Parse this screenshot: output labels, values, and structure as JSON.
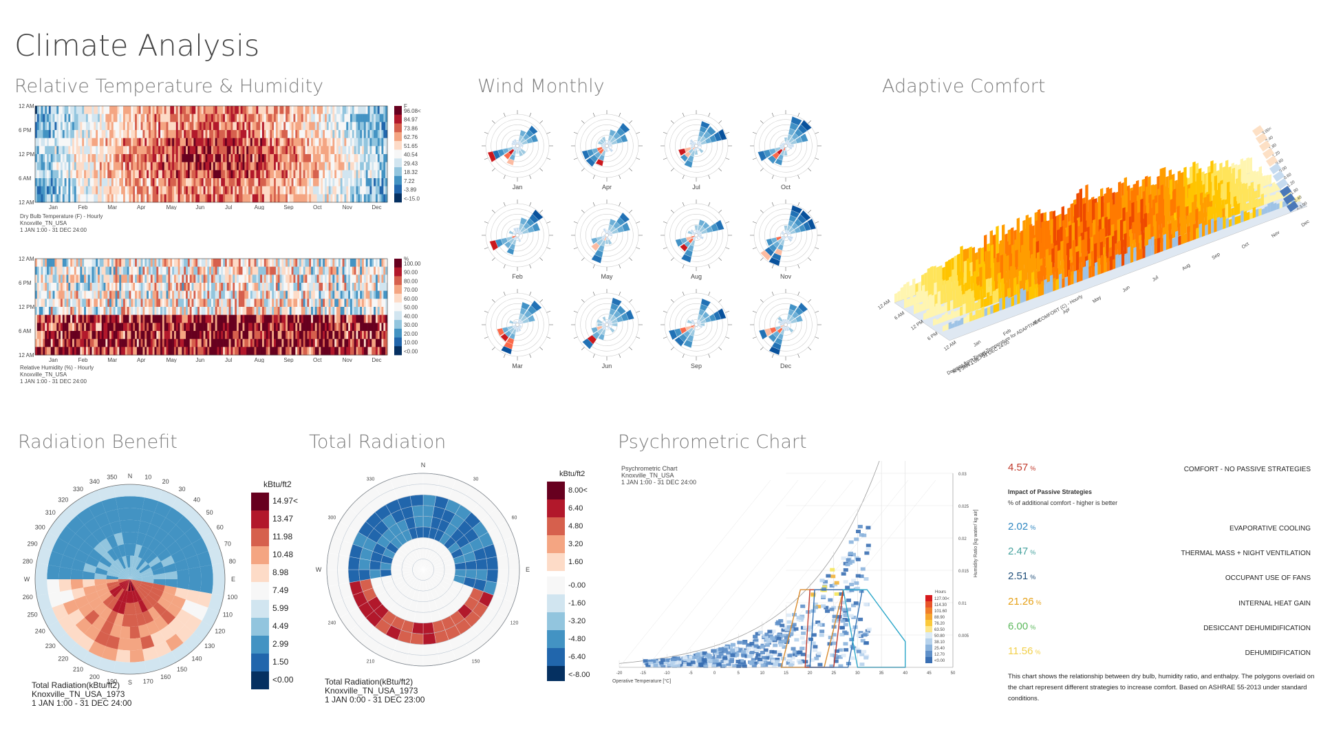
{
  "page": {
    "title": "Climate Analysis",
    "sections": {
      "temp_humidity": "Relative Temperature & Humidity",
      "wind": "Wind Monthly",
      "adaptive": "Adaptive Comfort",
      "radiation_benefit": "Radiation Benefit",
      "total_radiation": "Total Radiation",
      "psychrometric": "Psychrometric Chart"
    }
  },
  "colors": {
    "hot": "#67001f",
    "warm": "#d6604d",
    "neutral": "#f7f7f7",
    "cool": "#4393c3",
    "cold": "#053061",
    "comfort_orange": "#f08a1c",
    "comfort_yellow": "#f5d23a"
  },
  "chart_data": [
    {
      "type": "heatmap",
      "id": "dry_bulb",
      "y_ticks": [
        "12 AM",
        "6 PM",
        "12 PM",
        "6 AM",
        "12 AM"
      ],
      "x_ticks": [
        "Jan",
        "Feb",
        "Mar",
        "Apr",
        "May",
        "Jun",
        "Jul",
        "Aug",
        "Sep",
        "Oct",
        "Nov",
        "Dec"
      ],
      "legend_unit": "F",
      "legend": [
        "96.08<",
        "84.97",
        "73.86",
        "62.76",
        "51.65",
        "40.54",
        "29.43",
        "18.32",
        "7.22",
        "-3.89",
        "<-15.0"
      ],
      "caption": [
        "Dry Bulb Temperature (F) - Hourly",
        "Knoxville_TN_USA",
        "1 JAN 1:00 - 31 DEC 24:00"
      ]
    },
    {
      "type": "heatmap",
      "id": "relative_humidity",
      "y_ticks": [
        "12 AM",
        "6 PM",
        "12 PM",
        "6 AM",
        "12 AM"
      ],
      "x_ticks": [
        "Jan",
        "Feb",
        "Mar",
        "Apr",
        "May",
        "Jun",
        "Jul",
        "Aug",
        "Sep",
        "Oct",
        "Nov",
        "Dec"
      ],
      "legend_unit": "%",
      "legend": [
        "100.00",
        "90.00",
        "80.00",
        "70.00",
        "60.00",
        "50.00",
        "40.00",
        "30.00",
        "20.00",
        "10.00",
        "<0.00"
      ],
      "caption": [
        "Relative Humidity (%) - Hourly",
        "Knoxville_TN_USA",
        "1 JAN 1:00 - 31 DEC 24:00"
      ]
    },
    {
      "type": "windrose",
      "id": "wind_monthly",
      "months": [
        "Jan",
        "Apr",
        "Jul",
        "Oct",
        "Feb",
        "May",
        "Aug",
        "Nov",
        "Mar",
        "Jun",
        "Sep",
        "Dec"
      ]
    },
    {
      "type": "area",
      "id": "adaptive_comfort",
      "x_ticks": [
        "Jan",
        "Feb",
        "Mar",
        "Apr",
        "May",
        "Jun",
        "Jul",
        "Aug",
        "Sep",
        "Oct",
        "Nov",
        "Dec"
      ],
      "y_ticks": [
        "12 AM",
        "6 AM",
        "12 PM",
        "6 PM",
        "12 AM"
      ],
      "caption": [
        "Degrees from Target Temperature for ADAPTIVE COMFORT (C) - Hourly",
        "Knoxville_TN_USA",
        "1 JAN 1:00 - 31 DEC 24:00"
      ],
      "legend": [
        "3.00<",
        "2.40",
        "1.80",
        "1.20",
        "0.60",
        "0.00",
        "-0.60",
        "-1.20",
        "-1.80",
        "-2.40",
        "<-3.00"
      ]
    },
    {
      "type": "heatmap",
      "id": "radiation_benefit",
      "compass": [
        "N",
        "E",
        "S",
        "W"
      ],
      "degrees": [
        "10",
        "20",
        "30",
        "40",
        "50",
        "60",
        "70",
        "80",
        "100",
        "110",
        "120",
        "130",
        "140",
        "150",
        "160",
        "170",
        "190",
        "200",
        "210",
        "220",
        "230",
        "240",
        "250",
        "260",
        "280",
        "290",
        "300",
        "310",
        "320",
        "330",
        "340",
        "350"
      ],
      "legend_unit": "kBtu/ft2",
      "legend": [
        "14.97<",
        "13.47",
        "11.98",
        "10.48",
        "8.98",
        "7.49",
        "5.99",
        "4.49",
        "2.99",
        "1.50",
        "<0.00"
      ],
      "caption": [
        "Total Radiation(kBtu/ft2)",
        "Knoxville_TN_USA_1973",
        "1 JAN 1:00 - 31 DEC 24:00"
      ]
    },
    {
      "type": "heatmap",
      "id": "total_radiation",
      "compass": [
        "N",
        "E",
        "W"
      ],
      "degrees": [
        "30",
        "60",
        "120",
        "150",
        "210",
        "240",
        "300",
        "330"
      ],
      "legend_unit": "kBtu/ft2",
      "legend": [
        "8.00<",
        "6.40",
        "4.80",
        "3.20",
        "1.60",
        "-0.00",
        "-1.60",
        "-3.20",
        "-4.80",
        "-6.40",
        "<-8.00"
      ],
      "caption": [
        "Total Radiation(kBtu/ft2)",
        "Knoxville_TN_USA_1973",
        "1 JAN 0:00 - 31 DEC 23:00"
      ]
    },
    {
      "type": "scatter",
      "id": "psychrometric",
      "caption": [
        "Psychrometric Chart",
        "Knoxville_TN_USA",
        "1 JAN 1:00 - 31 DEC 24:00"
      ],
      "xlabel": "Operative Temperature [°C]",
      "ylabel": "Humidity Ratio [kg water/ kg air]",
      "x_ticks": [
        "-20",
        "-15",
        "-10",
        "-5",
        "0",
        "5",
        "10",
        "15",
        "20",
        "25",
        "30",
        "35",
        "40",
        "45",
        "50"
      ],
      "y_ticks": [
        "0.03",
        "0.025",
        "0.02",
        "0.015",
        "0.01",
        "0.005"
      ],
      "legend_unit": "Hours",
      "legend": [
        "127.00<",
        "114.30",
        "101.60",
        "88.90",
        "76.20",
        "63.50",
        "50.80",
        "38.10",
        "25.40",
        "12.70",
        "<0.00"
      ]
    }
  ],
  "strategies": {
    "comfort": {
      "value": "4.57",
      "pct": "%",
      "label": "COMFORT - NO PASSIVE STRATEGIES",
      "color": "#c0392b"
    },
    "impact_title": "Impact of Passive Strategies",
    "impact_sub": "% of additional comfort - higher is better",
    "items": [
      {
        "value": "2.02",
        "pct": "%",
        "label": "EVAPORATIVE COOLING",
        "color": "#2e86c1"
      },
      {
        "value": "2.47",
        "pct": "%",
        "label": "THERMAL MASS + NIGHT VENTILATION",
        "color": "#45a29e"
      },
      {
        "value": "2.51",
        "pct": "%",
        "label": "OCCUPANT USE OF FANS",
        "color": "#1f4e79"
      },
      {
        "value": "21.26",
        "pct": "%",
        "label": "INTERNAL HEAT GAIN",
        "color": "#e6a117"
      },
      {
        "value": "6.00",
        "pct": "%",
        "label": "DESICCANT DEHUMIDIFICATION",
        "color": "#5cb85c"
      },
      {
        "value": "11.56",
        "pct": "%",
        "label": "DEHUMIDIFICATION",
        "color": "#f2d04b"
      }
    ],
    "note": "This chart shows the relationship between dry bulb, humidity ratio, and enthalpy. The polygons overlaid on the chart represent different strategies to increase comfort. Based on ASHRAE 55-2013 under standard conditions."
  }
}
